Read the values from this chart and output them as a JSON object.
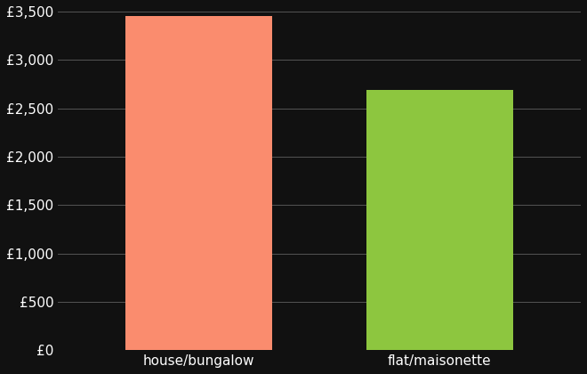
{
  "categories": [
    "house/bungalow",
    "flat/maisonette"
  ],
  "values": [
    3450,
    2690
  ],
  "bar_colors": [
    "#FA8C6E",
    "#8DC63F"
  ],
  "background_color": "#111111",
  "text_color": "#ffffff",
  "ylim": [
    0,
    3500
  ],
  "yticks": [
    0,
    500,
    1000,
    1500,
    2000,
    2500,
    3000,
    3500
  ],
  "ytick_labels": [
    "£0",
    "£500",
    "£1,000",
    "£1,500",
    "£2,000",
    "£2,500",
    "£3,000",
    "£3,500"
  ],
  "grid_color": "#555555",
  "bar_width": 0.28,
  "x_positions": [
    0.27,
    0.73
  ],
  "xlim": [
    0,
    1
  ]
}
